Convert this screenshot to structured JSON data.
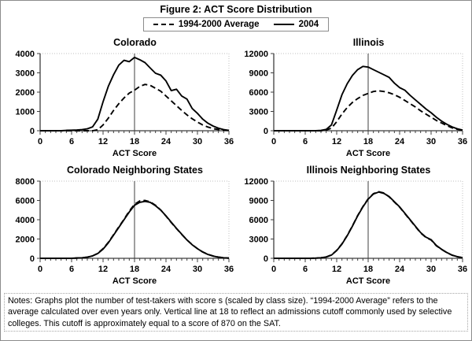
{
  "figure": {
    "title": "Figure 2: ACT Score Distribution",
    "legend": {
      "dashed_label": "1994-2000 Average",
      "solid_label": "2004"
    },
    "notes": "Notes: Graphs plot the number of test-takers with score s (scaled by class size). “1994-2000 Average” refers to the average calculated over even years only. Vertical line at 18 to reflect an admissions cutoff commonly used by selective colleges. This cutoff is approximately equal to a score of 870 on the SAT."
  },
  "colors": {
    "curve": "#000000",
    "axis": "#3f3f3f",
    "vline": "#3f3f3f",
    "plot_border": "#bfbfbf",
    "background": "#ffffff"
  },
  "chart_data": [
    {
      "type": "line",
      "title": "Colorado",
      "xlabel": "ACT Score",
      "x_min": 0,
      "x_max": 36,
      "x_major_step": 6,
      "x_minor_step": 1,
      "ylim": [
        0,
        4000
      ],
      "ytick_step": 1000,
      "vline_x": 18,
      "legend_position": "top-center",
      "grid": false,
      "series": [
        {
          "name": "1994-2000 Average",
          "style": "dashed",
          "values": [
            0,
            0,
            0,
            0,
            0,
            0,
            0,
            0,
            0,
            0,
            0,
            50,
            300,
            650,
            1050,
            1400,
            1700,
            1950,
            2100,
            2300,
            2400,
            2350,
            2200,
            2050,
            1800,
            1550,
            1300,
            1050,
            820,
            620,
            450,
            300,
            190,
            110,
            60,
            25,
            10
          ]
        },
        {
          "name": "2004",
          "style": "solid",
          "values": [
            0,
            0,
            0,
            0,
            0,
            20,
            30,
            40,
            60,
            100,
            200,
            600,
            1500,
            2300,
            2900,
            3400,
            3650,
            3580,
            3800,
            3680,
            3530,
            3250,
            2980,
            2880,
            2580,
            2080,
            2150,
            1800,
            1640,
            1150,
            900,
            600,
            390,
            240,
            130,
            60,
            20
          ]
        }
      ]
    },
    {
      "type": "line",
      "title": "Illinois",
      "xlabel": "ACT Score",
      "x_min": 0,
      "x_max": 36,
      "x_major_step": 6,
      "x_minor_step": 1,
      "ylim": [
        0,
        12000
      ],
      "ytick_step": 3000,
      "vline_x": 18,
      "legend_position": "top-center",
      "grid": false,
      "series": [
        {
          "name": "1994-2000 Average",
          "style": "dashed",
          "values": [
            0,
            0,
            0,
            0,
            0,
            0,
            0,
            0,
            0,
            0,
            100,
            400,
            1400,
            2600,
            3600,
            4400,
            5000,
            5500,
            5800,
            6100,
            6200,
            6100,
            5900,
            5600,
            5200,
            4700,
            4200,
            3700,
            3100,
            2600,
            2100,
            1600,
            1200,
            800,
            450,
            220,
            80
          ]
        },
        {
          "name": "2004",
          "style": "solid",
          "values": [
            0,
            0,
            0,
            0,
            0,
            0,
            0,
            0,
            0,
            50,
            200,
            900,
            3200,
            5600,
            7300,
            8600,
            9500,
            10000,
            9900,
            9500,
            9100,
            8700,
            8300,
            7400,
            6700,
            6300,
            5500,
            4800,
            4100,
            3400,
            2800,
            2100,
            1500,
            1000,
            600,
            300,
            100
          ]
        }
      ]
    },
    {
      "type": "line",
      "title": "Colorado Neighboring States",
      "xlabel": "ACT Score",
      "x_min": 0,
      "x_max": 36,
      "x_major_step": 6,
      "x_minor_step": 1,
      "ylim": [
        0,
        8000
      ],
      "ytick_step": 2000,
      "vline_x": 18,
      "legend_position": "top-center",
      "grid": false,
      "series": [
        {
          "name": "1994-2000 Average",
          "style": "dashed",
          "values": [
            0,
            0,
            0,
            0,
            0,
            0,
            0,
            30,
            60,
            120,
            250,
            520,
            1000,
            1650,
            2450,
            3250,
            4050,
            4900,
            5600,
            5950,
            6000,
            5850,
            5500,
            5000,
            4380,
            3700,
            3080,
            2480,
            1900,
            1420,
            1000,
            660,
            410,
            240,
            130,
            60,
            20
          ]
        },
        {
          "name": "2004",
          "style": "solid",
          "values": [
            0,
            0,
            0,
            0,
            0,
            0,
            0,
            30,
            60,
            120,
            250,
            500,
            950,
            1600,
            2400,
            3200,
            4000,
            4800,
            5500,
            5800,
            5900,
            5800,
            5450,
            5000,
            4400,
            3750,
            3100,
            2500,
            1900,
            1400,
            1000,
            650,
            400,
            230,
            120,
            60,
            20
          ]
        }
      ]
    },
    {
      "type": "line",
      "title": "Illinois Neighboring States",
      "xlabel": "ACT Score",
      "x_min": 0,
      "x_max": 36,
      "x_major_step": 6,
      "x_minor_step": 1,
      "ylim": [
        0,
        12000
      ],
      "ytick_step": 3000,
      "vline_x": 18,
      "legend_position": "top-center",
      "grid": false,
      "series": [
        {
          "name": "1994-2000 Average",
          "style": "dashed",
          "values": [
            0,
            0,
            0,
            0,
            0,
            0,
            0,
            0,
            30,
            80,
            210,
            520,
            1250,
            2250,
            3550,
            5050,
            6650,
            8050,
            9250,
            10050,
            10350,
            10150,
            9550,
            8750,
            7950,
            6950,
            5950,
            4950,
            3950,
            3250,
            2850,
            1950,
            1380,
            880,
            480,
            240,
            90
          ]
        },
        {
          "name": "2004",
          "style": "solid",
          "values": [
            0,
            0,
            0,
            0,
            0,
            0,
            0,
            0,
            30,
            80,
            200,
            500,
            1200,
            2200,
            3500,
            5000,
            6600,
            8000,
            9200,
            10000,
            10300,
            10100,
            9600,
            8800,
            8000,
            7000,
            6000,
            5000,
            4000,
            3300,
            2900,
            2000,
            1400,
            900,
            500,
            250,
            100
          ]
        }
      ]
    }
  ]
}
